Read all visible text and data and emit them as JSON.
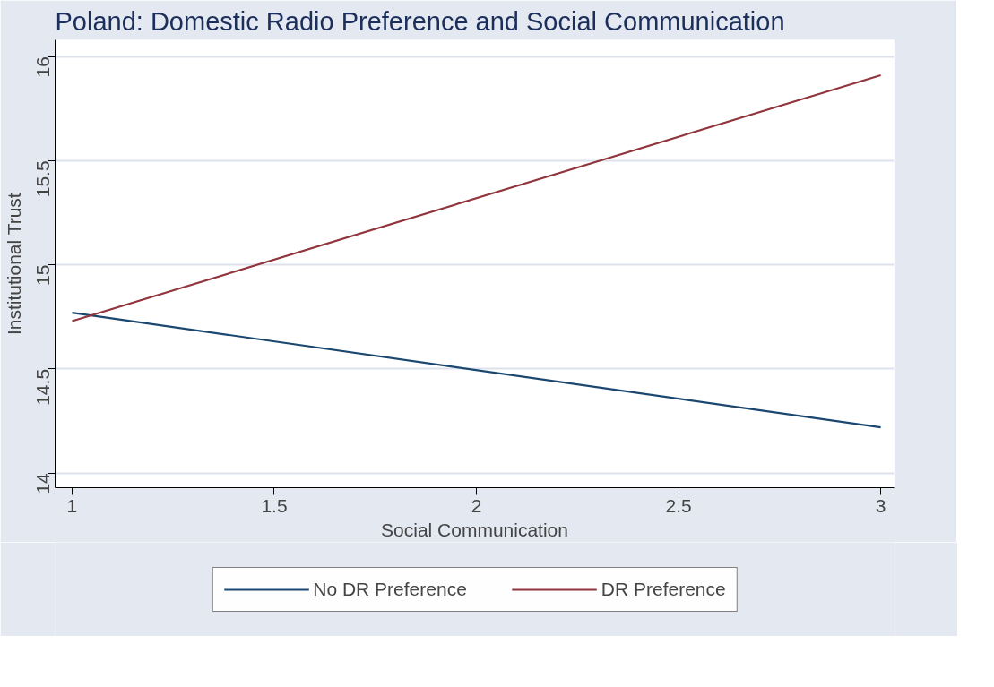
{
  "chart_data": {
    "type": "line",
    "title": "Poland: Domestic Radio Preference and Social Communication",
    "xlabel": "Social Communication",
    "ylabel": "Institutional Trust",
    "x": [
      1,
      3
    ],
    "series": [
      {
        "name": "No DR Preference",
        "color": "#1a476f",
        "values": [
          14.77,
          14.22
        ]
      },
      {
        "name": "DR Preference",
        "color": "#90353b",
        "values": [
          14.73,
          15.91
        ]
      }
    ],
    "xlim": [
      0.958,
      3.033
    ],
    "ylim": [
      13.93,
      16.08
    ],
    "xticks": [
      1,
      1.5,
      2,
      2.5,
      3
    ],
    "yticks": [
      14,
      14.5,
      15,
      15.5,
      16
    ],
    "grid": "y",
    "legend": "bottom",
    "marker": "none",
    "line_style": "solid"
  }
}
